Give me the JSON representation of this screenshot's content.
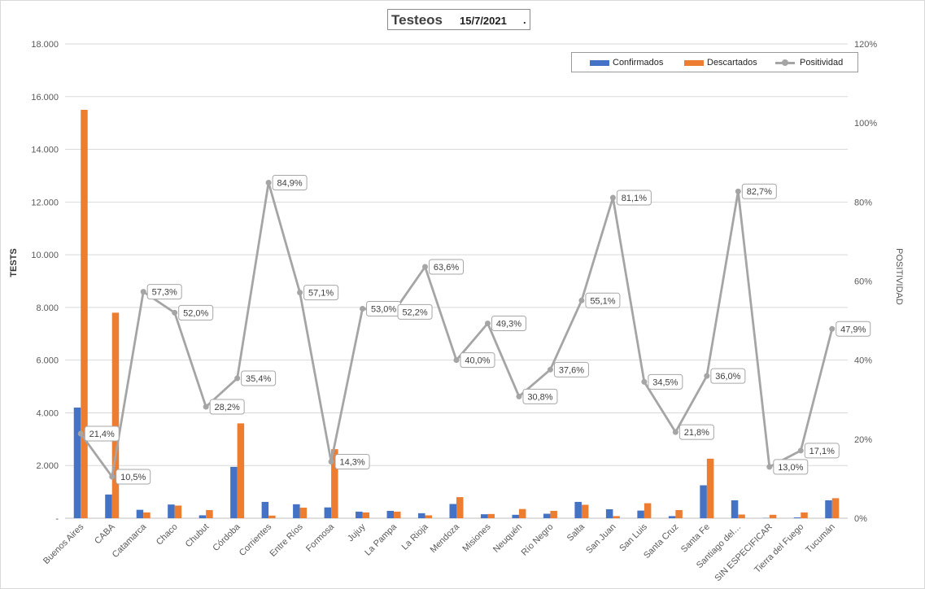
{
  "chart_data": {
    "type": "bar+line",
    "title": "Testeos",
    "date": "15/7/2021",
    "title_suffix": ".",
    "ylabel": "TESTS",
    "y2label": "POSITIVIDAD",
    "ylim": [
      0,
      18000
    ],
    "y2lim": [
      0,
      120
    ],
    "yticks": [
      "-",
      "2.000",
      "4.000",
      "6.000",
      "8.000",
      "10.000",
      "12.000",
      "14.000",
      "16.000",
      "18.000"
    ],
    "y2ticks": [
      "0%",
      "20%",
      "40%",
      "60%",
      "80%",
      "100%",
      "120%"
    ],
    "legend": [
      "Confirmados",
      "Descartados",
      "Positividad"
    ],
    "categories": [
      "Buenos Aires",
      "CABA",
      "Catamarca",
      "Chaco",
      "Chubut",
      "Córdoba",
      "Corrientes",
      "Entre Ríos",
      "Formosa",
      "Jujuy",
      "La Pampa",
      "La Rioja",
      "Mendoza",
      "Misiones",
      "Neuquén",
      "Río Negro",
      "Salta",
      "San Juan",
      "San Luis",
      "Santa Cruz",
      "Santa Fe",
      "Santiago del…",
      "SIN ESPECIFICAR",
      "Tierra del Fuego",
      "Tucumán"
    ],
    "series": [
      {
        "name": "Confirmados",
        "color": "#4472c4",
        "values": [
          4200,
          900,
          320,
          520,
          110,
          1950,
          620,
          530,
          410,
          250,
          280,
          190,
          540,
          150,
          130,
          170,
          620,
          340,
          290,
          80,
          1250,
          680,
          10,
          30,
          680
        ]
      },
      {
        "name": "Descartados",
        "color": "#ed7d31",
        "values": [
          15500,
          7800,
          220,
          480,
          310,
          3600,
          100,
          400,
          2620,
          220,
          250,
          110,
          800,
          160,
          350,
          280,
          510,
          80,
          570,
          310,
          2260,
          140,
          130,
          220,
          760
        ]
      },
      {
        "name": "Positividad",
        "color": "#a5a5a5",
        "values": [
          21.4,
          10.5,
          57.3,
          52.0,
          28.2,
          35.4,
          84.9,
          57.1,
          14.3,
          53.0,
          52.2,
          63.6,
          40.0,
          49.3,
          30.8,
          37.6,
          55.1,
          81.1,
          34.5,
          21.8,
          36.0,
          82.7,
          13.0,
          17.1,
          47.9
        ],
        "labels": [
          "21,4%",
          "10,5%",
          "57,3%",
          "52,0%",
          "28,2%",
          "35,4%",
          "84,9%",
          "57,1%",
          "14,3%",
          "53,0%",
          "52,2%",
          "63,6%",
          "40,0%",
          "49,3%",
          "30,8%",
          "37,6%",
          "55,1%",
          "81,1%",
          "34,5%",
          "21,8%",
          "36,0%",
          "82,7%",
          "13,0%",
          "17,1%",
          "47,9%"
        ]
      }
    ]
  }
}
